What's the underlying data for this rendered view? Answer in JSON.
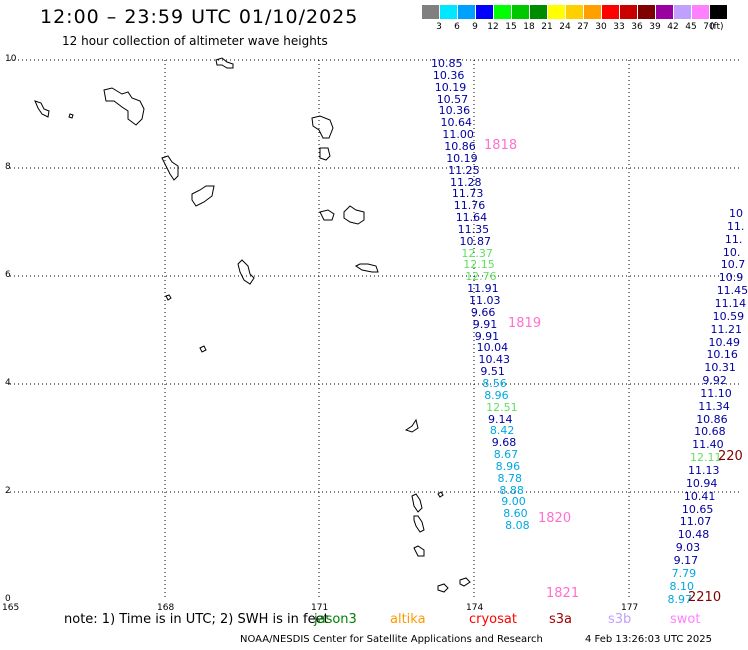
{
  "header": {
    "title": "12:00 – 23:59 UTC 01/10/2025",
    "subtitle": "12 hour collection of altimeter wave heights"
  },
  "legend": {
    "unit": "(ft)",
    "bins": [
      {
        "color": "#808080",
        "label": "3"
      },
      {
        "color": "#00e8ff",
        "label": "6"
      },
      {
        "color": "#00a0ff",
        "label": "9"
      },
      {
        "color": "#0000ff",
        "label": "12"
      },
      {
        "color": "#00ff00",
        "label": "15"
      },
      {
        "color": "#00c800",
        "label": "18"
      },
      {
        "color": "#008c00",
        "label": "21"
      },
      {
        "color": "#ffff00",
        "label": "24"
      },
      {
        "color": "#ffd000",
        "label": "27"
      },
      {
        "color": "#ffa000",
        "label": "30"
      },
      {
        "color": "#ff0000",
        "label": "33"
      },
      {
        "color": "#c80000",
        "label": "36"
      },
      {
        "color": "#800000",
        "label": "39"
      },
      {
        "color": "#9a00a0",
        "label": "42"
      },
      {
        "color": "#c0a0ff",
        "label": "45"
      },
      {
        "color": "#ff80ff",
        "label": "70"
      },
      {
        "color": "#000000",
        "label": ""
      }
    ]
  },
  "axes": {
    "x_ticks": [
      "165",
      "168",
      "171",
      "174",
      "177"
    ],
    "y_ticks": [
      "0",
      "2",
      "4",
      "6",
      "8",
      "10"
    ]
  },
  "colors": {
    "dark_blue": "#0000a0",
    "cyan": "#00a8e0",
    "light_green": "#60e060",
    "pink_pass": "#ff70d0",
    "maroon_pass": "#800000"
  },
  "passes": {
    "track_a": [
      {
        "v": "10.85",
        "c": "dark_blue"
      },
      {
        "v": "10.36",
        "c": "dark_blue"
      },
      {
        "v": "10.19",
        "c": "dark_blue"
      },
      {
        "v": "10.57",
        "c": "dark_blue"
      },
      {
        "v": "10.36",
        "c": "dark_blue"
      },
      {
        "v": "10.64",
        "c": "dark_blue"
      },
      {
        "v": "11.00",
        "c": "dark_blue"
      },
      {
        "v": "10.86",
        "c": "dark_blue"
      },
      {
        "v": "10.19",
        "c": "dark_blue"
      },
      {
        "v": "11.25",
        "c": "dark_blue"
      },
      {
        "v": "11.28",
        "c": "dark_blue"
      },
      {
        "v": "11.73",
        "c": "dark_blue"
      },
      {
        "v": "11.76",
        "c": "dark_blue"
      },
      {
        "v": "11.64",
        "c": "dark_blue"
      },
      {
        "v": "11.35",
        "c": "dark_blue"
      },
      {
        "v": "10.87",
        "c": "dark_blue"
      },
      {
        "v": "12.37",
        "c": "light_green"
      },
      {
        "v": "12.15",
        "c": "light_green"
      },
      {
        "v": "12.76",
        "c": "light_green"
      },
      {
        "v": "11.91",
        "c": "dark_blue"
      },
      {
        "v": "11.03",
        "c": "dark_blue"
      },
      {
        "v": "9.66",
        "c": "dark_blue"
      },
      {
        "v": "9.91",
        "c": "dark_blue"
      },
      {
        "v": "9.91",
        "c": "dark_blue"
      },
      {
        "v": "10.04",
        "c": "dark_blue"
      },
      {
        "v": "10.43",
        "c": "dark_blue"
      },
      {
        "v": "9.51",
        "c": "dark_blue"
      },
      {
        "v": "8.56",
        "c": "cyan"
      },
      {
        "v": "8.96",
        "c": "cyan"
      },
      {
        "v": "12.51",
        "c": "light_green"
      },
      {
        "v": "9.14",
        "c": "dark_blue"
      },
      {
        "v": "8.42",
        "c": "cyan"
      },
      {
        "v": "9.68",
        "c": "dark_blue"
      },
      {
        "v": "8.67",
        "c": "cyan"
      },
      {
        "v": "8.96",
        "c": "cyan"
      },
      {
        "v": "8.78",
        "c": "cyan"
      },
      {
        "v": "8.88",
        "c": "cyan"
      },
      {
        "v": "9.00",
        "c": "cyan"
      },
      {
        "v": "8.60",
        "c": "cyan"
      },
      {
        "v": "8.08",
        "c": "cyan"
      }
    ],
    "track_b": [
      {
        "v": "10",
        "c": "dark_blue"
      },
      {
        "v": "11.",
        "c": "dark_blue"
      },
      {
        "v": "11.",
        "c": "dark_blue"
      },
      {
        "v": "10.",
        "c": "dark_blue"
      },
      {
        "v": "10.7",
        "c": "dark_blue"
      },
      {
        "v": "10.9",
        "c": "dark_blue"
      },
      {
        "v": "11.45",
        "c": "dark_blue"
      },
      {
        "v": "11.14",
        "c": "dark_blue"
      },
      {
        "v": "10.59",
        "c": "dark_blue"
      },
      {
        "v": "11.21",
        "c": "dark_blue"
      },
      {
        "v": "10.49",
        "c": "dark_blue"
      },
      {
        "v": "10.16",
        "c": "dark_blue"
      },
      {
        "v": "10.31",
        "c": "dark_blue"
      },
      {
        "v": "9.92",
        "c": "dark_blue"
      },
      {
        "v": "11.10",
        "c": "dark_blue"
      },
      {
        "v": "11.34",
        "c": "dark_blue"
      },
      {
        "v": "10.86",
        "c": "dark_blue"
      },
      {
        "v": "10.68",
        "c": "dark_blue"
      },
      {
        "v": "11.40",
        "c": "dark_blue"
      },
      {
        "v": "12.11",
        "c": "light_green"
      },
      {
        "v": "11.13",
        "c": "dark_blue"
      },
      {
        "v": "10.94",
        "c": "dark_blue"
      },
      {
        "v": "10.41",
        "c": "dark_blue"
      },
      {
        "v": "10.65",
        "c": "dark_blue"
      },
      {
        "v": "11.07",
        "c": "dark_blue"
      },
      {
        "v": "10.48",
        "c": "dark_blue"
      },
      {
        "v": "9.03",
        "c": "dark_blue"
      },
      {
        "v": "9.17",
        "c": "dark_blue"
      },
      {
        "v": "7.79",
        "c": "cyan"
      },
      {
        "v": "8.10",
        "c": "cyan"
      },
      {
        "v": "8.97",
        "c": "cyan"
      }
    ],
    "time_labels": [
      {
        "text": "1818",
        "c": "pink_pass"
      },
      {
        "text": "1819",
        "c": "pink_pass"
      },
      {
        "text": "1820",
        "c": "pink_pass"
      },
      {
        "text": "1821",
        "c": "pink_pass"
      },
      {
        "text": "220",
        "c": "maroon_pass"
      },
      {
        "text": "2210",
        "c": "maroon_pass"
      }
    ]
  },
  "footer": {
    "note": "note:  1) Time is in UTC;  2) SWH is in feet",
    "satellites": [
      {
        "name": "jason3",
        "color": "#008000"
      },
      {
        "name": "altika",
        "color": "#ff9900"
      },
      {
        "name": "cryosat",
        "color": "#ff0000"
      },
      {
        "name": "s3a",
        "color": "#a00000"
      },
      {
        "name": "s3b",
        "color": "#c0a0ff"
      },
      {
        "name": "swot",
        "color": "#ff80ff"
      }
    ],
    "credit": "NOAA/NESDIS Center for Satellite Applications and Research",
    "timestamp": "4 Feb 13:26:03 UTC 2025"
  }
}
